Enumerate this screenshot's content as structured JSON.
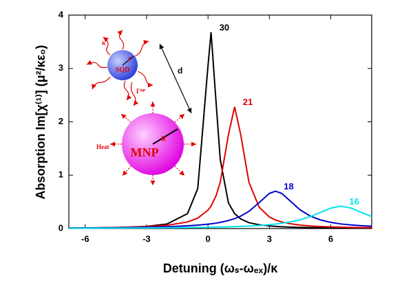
{
  "chart_data": {
    "type": "line",
    "x_label": "Detuning (ωₛ-ωₑₓ)/κ",
    "y_label": "Absorption Im[χ⁽¹⁾] (μ²/κε₀)",
    "x": [
      -6.8,
      -6,
      -5,
      -4,
      -3,
      -2,
      -1,
      -0.5,
      0,
      0.15,
      0.4,
      0.6,
      1,
      1.3,
      1.6,
      2,
      2.5,
      3,
      3.3,
      3.6,
      4,
      4.5,
      5,
      5.5,
      6,
      6.5,
      7,
      7.5,
      8
    ],
    "series": [
      {
        "name": "30",
        "color": "#000000",
        "values": [
          0.008,
          0.0105,
          0.015,
          0.023,
          0.04,
          0.085,
          0.28,
          0.75,
          3.05,
          3.68,
          2.34,
          1.29,
          0.48,
          0.28,
          0.18,
          0.11,
          0.071,
          0.049,
          0.04,
          0.033,
          0.027,
          0.021,
          0.017,
          0.014,
          0.012,
          0.01,
          0.0085,
          0.0074,
          0.0065
        ]
      },
      {
        "name": "21",
        "color": "#e00000",
        "values": [
          0.0105,
          0.0128,
          0.0173,
          0.0243,
          0.037,
          0.062,
          0.123,
          0.195,
          0.346,
          0.42,
          0.62,
          0.87,
          1.76,
          2.28,
          1.76,
          0.87,
          0.4,
          0.216,
          0.16,
          0.123,
          0.091,
          0.065,
          0.049,
          0.038,
          0.031,
          0.025,
          0.021,
          0.0178,
          0.0153
        ]
      },
      {
        "name": "18",
        "color": "#0000d0",
        "values": [
          0.0097,
          0.0115,
          0.0143,
          0.0184,
          0.0245,
          0.034,
          0.051,
          0.064,
          0.082,
          0.089,
          0.102,
          0.116,
          0.15,
          0.185,
          0.233,
          0.322,
          0.485,
          0.659,
          0.7,
          0.659,
          0.522,
          0.35,
          0.233,
          0.161,
          0.116,
          0.086,
          0.067,
          0.053,
          0.043
        ]
      },
      {
        "name": "16",
        "color": "#00e5ee",
        "values": [
          0.006,
          0.0068,
          0.008,
          0.0095,
          0.0116,
          0.0144,
          0.0183,
          0.0209,
          0.024,
          0.0251,
          0.0271,
          0.0288,
          0.0328,
          0.0363,
          0.0405,
          0.0471,
          0.058,
          0.0725,
          0.084,
          0.098,
          0.122,
          0.164,
          0.224,
          0.302,
          0.383,
          0.42,
          0.383,
          0.302,
          0.224
        ]
      }
    ],
    "xlim": [
      -6.8,
      8
    ],
    "ylim": [
      0,
      4
    ],
    "xticks": [
      -6,
      -3,
      0,
      3,
      6
    ],
    "yticks": [
      0,
      1,
      2,
      3,
      4
    ],
    "grid": false
  },
  "inset": {
    "sqd": "SQD",
    "mnp": "MNP",
    "kappa": "κ",
    "r": "r",
    "gamma": "Γᴺᴾ",
    "heat": "Heat",
    "R": "R",
    "d": "d"
  }
}
